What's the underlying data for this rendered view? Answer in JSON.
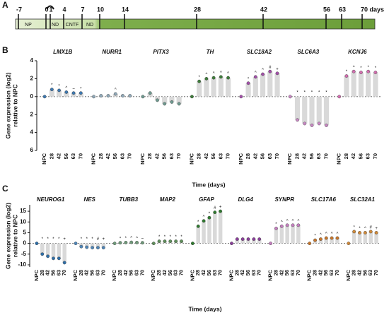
{
  "panels": [
    "A",
    "B",
    "C"
  ],
  "timeline": {
    "ticks": [
      -7,
      0,
      1,
      4,
      7,
      10,
      14,
      28,
      42,
      56,
      63,
      {
        "value": 70,
        "label": "70 days"
      }
    ],
    "segments": [
      "NP",
      "ND",
      "CNTF",
      "ND"
    ]
  },
  "chart_data": [
    {
      "type": "bar",
      "xlabel": "Time (days)",
      "ylabel": [
        "Gene expression (log2)",
        "relative to NPC"
      ],
      "categories": [
        "NPC",
        "28",
        "42",
        "56",
        "63",
        "70"
      ],
      "ylim": [
        -6,
        4
      ],
      "yticks": [
        {
          "value": 4,
          "label": "4"
        },
        2,
        0,
        {
          "value": -2,
          "label": "2"
        },
        {
          "value": -4,
          "label": "4"
        },
        {
          "value": -6,
          "label": "6"
        }
      ],
      "series": [
        {
          "name": "LMX1B",
          "color": "#3d78b0",
          "values": [
            0,
            0.8,
            0.7,
            0.5,
            0.4,
            0.4
          ],
          "markers": [
            null,
            "*",
            "*",
            "^",
            "~",
            "*"
          ]
        },
        {
          "name": "NURR1",
          "color": "#8fa8b8",
          "values": [
            0,
            0.1,
            0.1,
            0.3,
            0.1,
            0.1
          ],
          "markers": [
            null,
            null,
            null,
            "^",
            null,
            null
          ]
        },
        {
          "name": "PITX3",
          "color": "#6f9a90",
          "values": [
            0,
            0.4,
            -0.4,
            -0.8,
            -0.6,
            -0.8
          ],
          "markers": [
            null,
            null,
            null,
            null,
            null,
            null
          ]
        },
        {
          "name": "TH",
          "color": "#3e7d3a",
          "values": [
            0,
            1.7,
            2.0,
            2.1,
            2.2,
            2.1
          ],
          "markers": [
            null,
            "*",
            "^",
            "^",
            "^",
            "^"
          ]
        },
        {
          "name": "SLC18A2",
          "color": "#a24fa8",
          "values": [
            0,
            1.5,
            2.2,
            2.5,
            2.8,
            2.6
          ],
          "markers": [
            null,
            "*",
            "^",
            "^",
            "#",
            "+"
          ]
        },
        {
          "name": "SLC6A3",
          "color": "#c989c4",
          "values": [
            0,
            -2.6,
            -3.0,
            -3.2,
            -3.0,
            -3.2
          ],
          "markers": [
            null,
            "*",
            "*",
            "*",
            "*",
            "*"
          ]
        },
        {
          "name": "KCNJ6",
          "color": "#d36fb0",
          "values": [
            0,
            2.3,
            2.8,
            2.7,
            2.8,
            2.7
          ],
          "markers": [
            null,
            "*",
            "^",
            "*",
            "*",
            "*"
          ]
        }
      ]
    },
    {
      "type": "bar",
      "xlabel": "Time (days)",
      "ylabel": [
        "Gene expression (log2)",
        "relative to NPC"
      ],
      "categories": [
        "NPC",
        "28",
        "42",
        "56",
        "63",
        "70"
      ],
      "ylim": [
        -11,
        18
      ],
      "yticks": [
        -10,
        -5,
        0,
        5,
        10,
        15
      ],
      "series": [
        {
          "name": "NEUROG1",
          "color": "#2f6fa8",
          "values": [
            0,
            -5,
            -6,
            -7,
            -7,
            -9
          ],
          "markers": [
            null,
            "*",
            "*",
            "*",
            "*",
            "+"
          ]
        },
        {
          "name": "NES",
          "color": "#4f86b8",
          "values": [
            0,
            -1.5,
            -1.8,
            -2,
            -2,
            -2
          ],
          "markers": [
            null,
            "*",
            "*",
            "*",
            "#",
            "+"
          ]
        },
        {
          "name": "TUBB3",
          "color": "#6f9a7a",
          "values": [
            0,
            0.3,
            0.4,
            0.5,
            0.4,
            0.3
          ],
          "markers": [
            null,
            "*",
            "*",
            "^",
            "^",
            "~"
          ]
        },
        {
          "name": "MAP2",
          "color": "#5f8f5a",
          "values": [
            0,
            1,
            1,
            1,
            1,
            1
          ],
          "markers": [
            null,
            "*",
            "*",
            "*",
            "*",
            "*"
          ]
        },
        {
          "name": "GFAP",
          "color": "#2f7a2f",
          "values": [
            0,
            8,
            10.5,
            12,
            14.5,
            15
          ],
          "markers": [
            null,
            "*",
            "^",
            "^",
            "#",
            "+"
          ]
        },
        {
          "name": "DLG4",
          "color": "#8a3f9a",
          "values": [
            0,
            2,
            2,
            2,
            2,
            2
          ],
          "markers": [
            null,
            null,
            null,
            null,
            null,
            null
          ]
        },
        {
          "name": "SYNPR",
          "color": "#c47fbf",
          "values": [
            0,
            7,
            8,
            8.5,
            8.5,
            8.5
          ],
          "markers": [
            null,
            "*",
            "^",
            "^",
            "^",
            "^"
          ]
        },
        {
          "name": "SLC17A6",
          "color": "#c8762a",
          "values": [
            0,
            1.5,
            2,
            2.5,
            2.5,
            2.5
          ],
          "markers": [
            null,
            "*",
            "^",
            "^",
            "^",
            "^"
          ]
        },
        {
          "name": "SLC32A1",
          "color": "#d08a3a",
          "values": [
            0,
            5.5,
            5,
            5,
            5.5,
            5
          ],
          "markers": [
            null,
            "*",
            "*",
            "^",
            "#",
            "+"
          ]
        }
      ]
    }
  ]
}
